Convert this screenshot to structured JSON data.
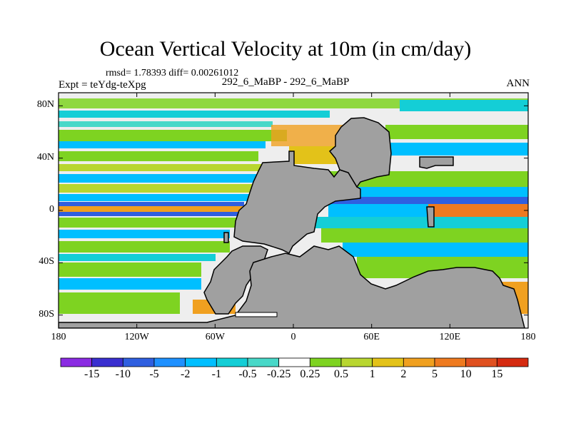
{
  "title": "Ocean Vertical Velocity at 10m (in cm/day)",
  "stats": "rmsd= 1.78393 diff= 0.00261012",
  "experiment": "Expt = teYdg-teXpg",
  "center_label": "292_6_MaBP - 292_6_MaBP",
  "season": "ANN",
  "y_axis": {
    "ticks": [
      "80N",
      "40N",
      "0",
      "40S",
      "80S"
    ],
    "values": [
      80,
      40,
      0,
      -40,
      -80
    ]
  },
  "x_axis": {
    "ticks": [
      "180",
      "120W",
      "60W",
      "0",
      "60E",
      "120E",
      "180"
    ],
    "values": [
      -180,
      -120,
      -60,
      0,
      60,
      120,
      180
    ]
  },
  "colorbar": {
    "labels": [
      "-15",
      "-10",
      "-5",
      "-2",
      "-1",
      "-0.5",
      "-0.25",
      "0.25",
      "0.5",
      "1",
      "2",
      "5",
      "10",
      "15"
    ],
    "colors": [
      "#8a2be2",
      "#3a2fd0",
      "#2f5fe0",
      "#1e90ff",
      "#00bfff",
      "#14ced6",
      "#48d8c8",
      "#ffffff",
      "#7ed321",
      "#b8d630",
      "#e3c219",
      "#f0a020",
      "#ee7a20",
      "#e05020",
      "#d52a10"
    ]
  },
  "land_color": "#a0a0a0"
}
